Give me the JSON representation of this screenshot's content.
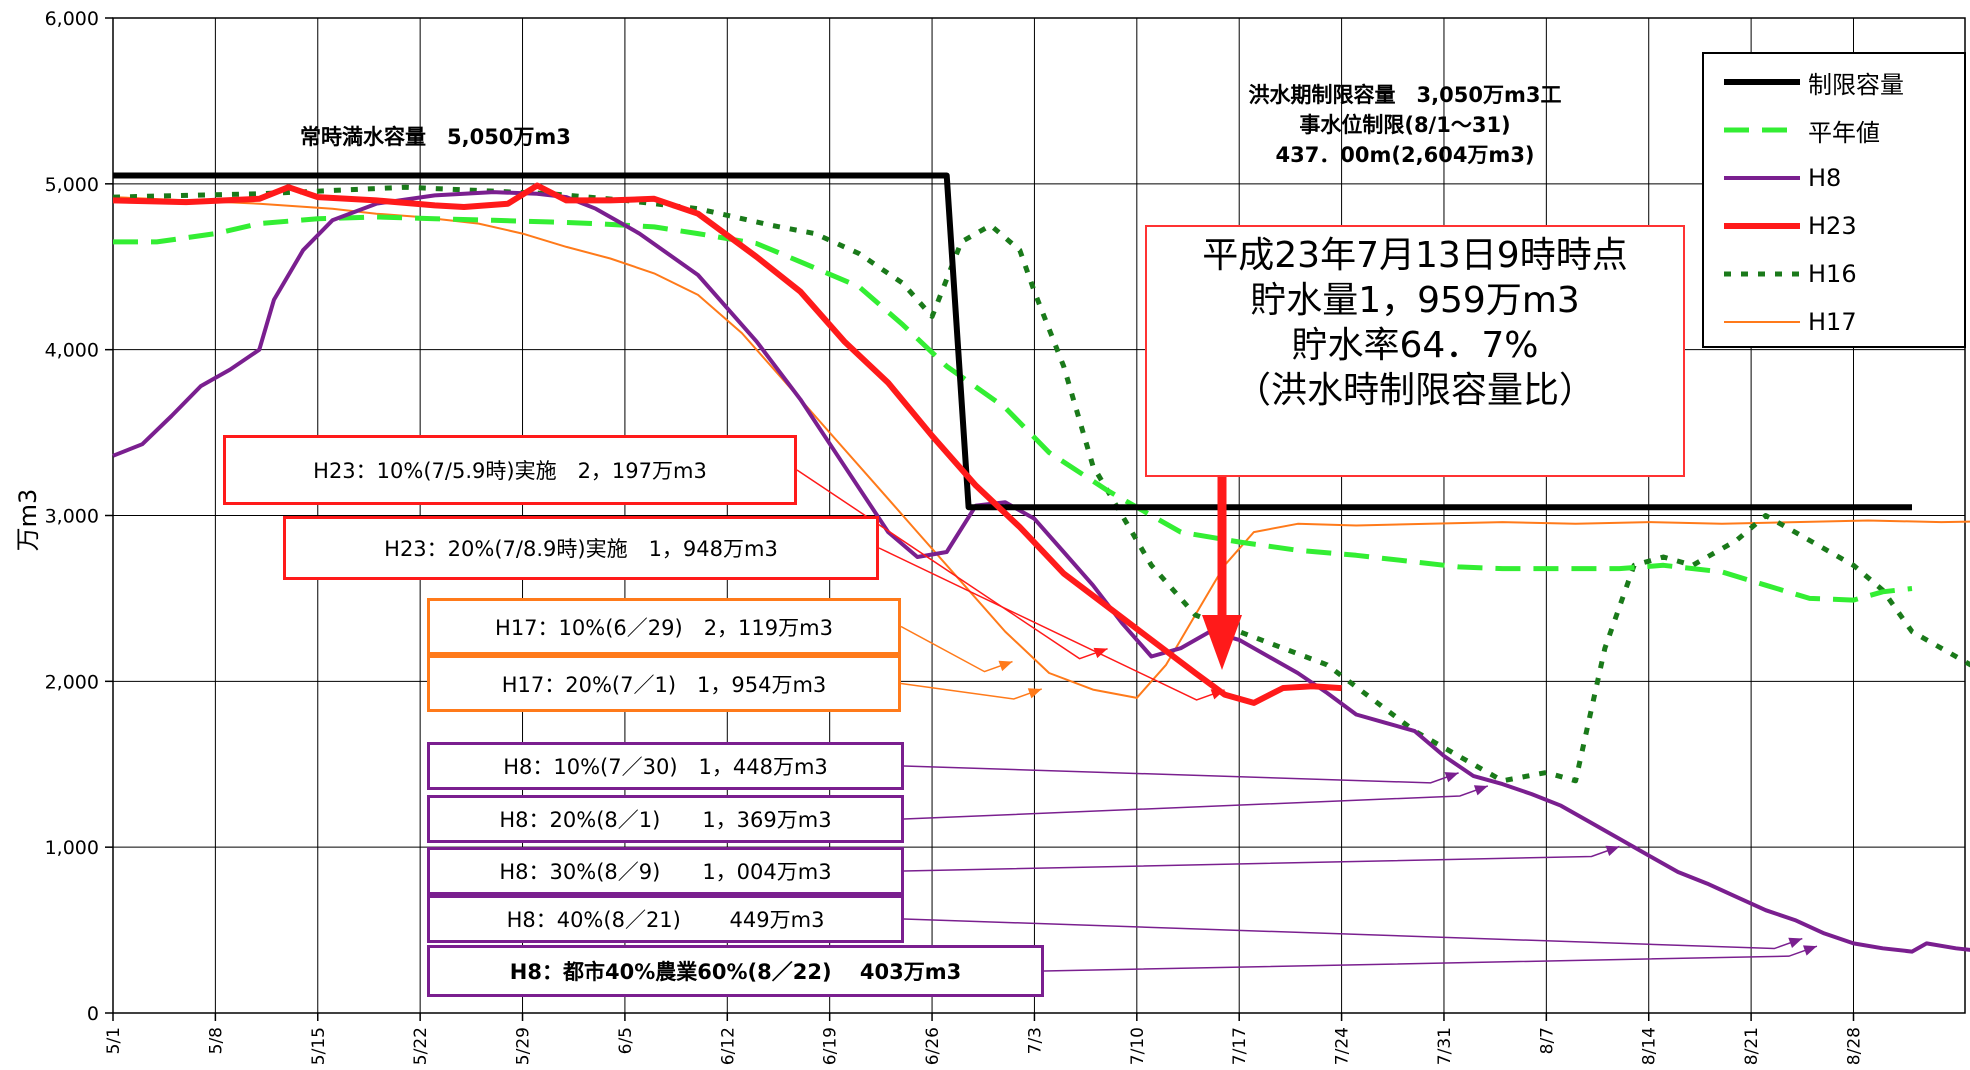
{
  "title_top_left": "",
  "title_top_right": "",
  "chart_data": {
    "type": "line",
    "ylabel": "万m3",
    "xlabel": "",
    "ylim": [
      0,
      6000
    ],
    "y_ticks": [
      "0",
      "1,000",
      "2,000",
      "3,000",
      "4,000",
      "5,000",
      "6,000"
    ],
    "x_ticks": [
      "5/1",
      "5/8",
      "5/15",
      "5/22",
      "5/29",
      "6/5",
      "6/12",
      "6/19",
      "6/26",
      "7/3",
      "7/10",
      "7/17",
      "7/24",
      "7/31",
      "8/7",
      "8/14",
      "8/21",
      "8/28"
    ],
    "x_domain_days": [
      0,
      123
    ],
    "series": [
      {
        "name": "制限容量",
        "color": "#000000",
        "style": "solid",
        "width": 6,
        "points": [
          [
            0,
            5050
          ],
          [
            57,
            5050
          ],
          [
            58.5,
            3050
          ],
          [
            123,
            3050
          ]
        ]
      },
      {
        "name": "平年値",
        "color": "#33ee33",
        "style": "dash",
        "width": 5,
        "points": [
          [
            0,
            4650
          ],
          [
            3,
            4650
          ],
          [
            7,
            4700
          ],
          [
            10,
            4760
          ],
          [
            14,
            4790
          ],
          [
            18,
            4800
          ],
          [
            22,
            4790
          ],
          [
            26,
            4780
          ],
          [
            30,
            4770
          ],
          [
            33,
            4760
          ],
          [
            37,
            4740
          ],
          [
            40,
            4700
          ],
          [
            44,
            4640
          ],
          [
            47,
            4530
          ],
          [
            51,
            4380
          ],
          [
            54,
            4150
          ],
          [
            57,
            3900
          ],
          [
            61,
            3650
          ],
          [
            64,
            3380
          ],
          [
            68,
            3150
          ],
          [
            71,
            3000
          ],
          [
            73,
            2900
          ],
          [
            77,
            2840
          ],
          [
            81,
            2790
          ],
          [
            85,
            2760
          ],
          [
            89,
            2720
          ],
          [
            92,
            2690
          ],
          [
            95,
            2680
          ],
          [
            99,
            2680
          ],
          [
            103,
            2680
          ],
          [
            106,
            2700
          ],
          [
            110,
            2660
          ],
          [
            113,
            2580
          ],
          [
            116,
            2500
          ],
          [
            119,
            2490
          ],
          [
            121,
            2540
          ],
          [
            123,
            2560
          ]
        ]
      },
      {
        "name": "H8",
        "color": "#7a1f8f",
        "style": "solid",
        "width": 4,
        "points": [
          [
            0,
            3360
          ],
          [
            2,
            3430
          ],
          [
            4,
            3600
          ],
          [
            6,
            3780
          ],
          [
            8,
            3880
          ],
          [
            10,
            4000
          ],
          [
            11,
            4300
          ],
          [
            13,
            4600
          ],
          [
            15,
            4780
          ],
          [
            18,
            4880
          ],
          [
            22,
            4930
          ],
          [
            26,
            4950
          ],
          [
            29,
            4940
          ],
          [
            31,
            4920
          ],
          [
            33,
            4850
          ],
          [
            36,
            4700
          ],
          [
            40,
            4450
          ],
          [
            44,
            4050
          ],
          [
            47,
            3700
          ],
          [
            50,
            3300
          ],
          [
            53,
            2900
          ],
          [
            55,
            2750
          ],
          [
            57,
            2780
          ],
          [
            59,
            3060
          ],
          [
            61,
            3080
          ],
          [
            63,
            2980
          ],
          [
            65,
            2780
          ],
          [
            67,
            2580
          ],
          [
            69,
            2350
          ],
          [
            71,
            2150
          ],
          [
            73,
            2200
          ],
          [
            75,
            2300
          ],
          [
            77,
            2250
          ],
          [
            79,
            2150
          ],
          [
            81,
            2050
          ],
          [
            83,
            1930
          ],
          [
            85,
            1800
          ],
          [
            87,
            1750
          ],
          [
            89,
            1700
          ],
          [
            91,
            1550
          ],
          [
            93,
            1430
          ],
          [
            95,
            1380
          ],
          [
            97,
            1320
          ],
          [
            99,
            1250
          ],
          [
            101,
            1150
          ],
          [
            103,
            1050
          ],
          [
            105,
            950
          ],
          [
            107,
            850
          ],
          [
            109,
            780
          ],
          [
            111,
            700
          ],
          [
            113,
            620
          ],
          [
            115,
            560
          ],
          [
            117,
            480
          ],
          [
            119,
            420
          ],
          [
            121,
            390
          ],
          [
            123,
            370
          ],
          [
            124,
            420
          ],
          [
            126,
            390
          ],
          [
            128,
            370
          ],
          [
            129,
            430
          ],
          [
            130,
            540
          ],
          [
            131,
            560
          ]
        ]
      },
      {
        "name": "H23",
        "color": "#ff1a1a",
        "style": "solid",
        "width": 6,
        "points": [
          [
            0,
            4900
          ],
          [
            5,
            4890
          ],
          [
            10,
            4910
          ],
          [
            12,
            4980
          ],
          [
            14,
            4920
          ],
          [
            18,
            4900
          ],
          [
            22,
            4870
          ],
          [
            24,
            4860
          ],
          [
            27,
            4880
          ],
          [
            29,
            4990
          ],
          [
            31,
            4900
          ],
          [
            34,
            4900
          ],
          [
            37,
            4910
          ],
          [
            40,
            4820
          ],
          [
            44,
            4560
          ],
          [
            47,
            4350
          ],
          [
            50,
            4050
          ],
          [
            53,
            3800
          ],
          [
            56,
            3480
          ],
          [
            59,
            3180
          ],
          [
            62,
            2930
          ],
          [
            65,
            2650
          ],
          [
            68,
            2450
          ],
          [
            71,
            2250
          ],
          [
            74,
            2050
          ],
          [
            76,
            1920
          ],
          [
            78,
            1870
          ],
          [
            80,
            1960
          ],
          [
            82,
            1970
          ],
          [
            84,
            1959
          ]
        ]
      },
      {
        "name": "H16",
        "color": "#1a7a1a",
        "style": "dot",
        "width": 5,
        "points": [
          [
            0,
            4920
          ],
          [
            5,
            4930
          ],
          [
            10,
            4940
          ],
          [
            15,
            4960
          ],
          [
            20,
            4980
          ],
          [
            25,
            4960
          ],
          [
            30,
            4940
          ],
          [
            35,
            4900
          ],
          [
            40,
            4850
          ],
          [
            45,
            4750
          ],
          [
            48,
            4700
          ],
          [
            51,
            4580
          ],
          [
            54,
            4400
          ],
          [
            56,
            4200
          ],
          [
            58,
            4650
          ],
          [
            60,
            4750
          ],
          [
            62,
            4600
          ],
          [
            63,
            4350
          ],
          [
            65,
            3900
          ],
          [
            67,
            3300
          ],
          [
            69,
            3000
          ],
          [
            71,
            2700
          ],
          [
            74,
            2400
          ],
          [
            77,
            2300
          ],
          [
            80,
            2200
          ],
          [
            83,
            2100
          ],
          [
            86,
            1900
          ],
          [
            89,
            1700
          ],
          [
            92,
            1550
          ],
          [
            95,
            1400
          ],
          [
            98,
            1450
          ],
          [
            100,
            1400
          ],
          [
            102,
            2200
          ],
          [
            104,
            2700
          ],
          [
            106,
            2750
          ],
          [
            108,
            2700
          ],
          [
            111,
            2850
          ],
          [
            113,
            3000
          ],
          [
            115,
            2900
          ],
          [
            117,
            2800
          ],
          [
            119,
            2700
          ],
          [
            121,
            2550
          ],
          [
            123,
            2300
          ],
          [
            125,
            2200
          ],
          [
            127,
            2100
          ],
          [
            129,
            2050
          ],
          [
            131,
            2200
          ]
        ]
      },
      {
        "name": "H17",
        "color": "#ff7a1a",
        "style": "solid",
        "width": 2,
        "points": [
          [
            0,
            4920
          ],
          [
            5,
            4900
          ],
          [
            10,
            4880
          ],
          [
            15,
            4850
          ],
          [
            18,
            4820
          ],
          [
            21,
            4800
          ],
          [
            25,
            4760
          ],
          [
            28,
            4700
          ],
          [
            31,
            4620
          ],
          [
            34,
            4550
          ],
          [
            37,
            4460
          ],
          [
            40,
            4330
          ],
          [
            43,
            4100
          ],
          [
            46,
            3800
          ],
          [
            49,
            3500
          ],
          [
            52,
            3200
          ],
          [
            55,
            2900
          ],
          [
            58,
            2600
          ],
          [
            61,
            2300
          ],
          [
            64,
            2050
          ],
          [
            67,
            1950
          ],
          [
            70,
            1900
          ],
          [
            72,
            2100
          ],
          [
            74,
            2400
          ],
          [
            76,
            2700
          ],
          [
            78,
            2900
          ],
          [
            81,
            2950
          ],
          [
            85,
            2940
          ],
          [
            90,
            2950
          ],
          [
            95,
            2960
          ],
          [
            100,
            2950
          ],
          [
            105,
            2960
          ],
          [
            110,
            2950
          ],
          [
            115,
            2960
          ],
          [
            120,
            2970
          ],
          [
            125,
            2960
          ],
          [
            131,
            2970
          ]
        ]
      }
    ],
    "legend": {
      "placement": "top-right",
      "entries": [
        "制限容量",
        "平年値",
        "H8",
        "H23",
        "H16",
        "H17"
      ]
    }
  },
  "annotations": {
    "full_capacity": "常時満水容量　5,050万m3",
    "flood_limit_line1": "洪水期制限容量　3,050万m3工",
    "flood_limit_line2": "事水位制限(8/1～31)",
    "flood_limit_line3": "437．00m(2,604万m3)",
    "current_line1": "平成23年7月13日9時時点",
    "current_line2": "貯水量1，959万m3",
    "current_line3": "貯水率64．7%",
    "current_line4": "（洪水時制限容量比）",
    "boxes": [
      {
        "text": "H23：10%(7/5.9時)実施　2，197万m3",
        "color": "#ff1a1a",
        "bold": false,
        "target": [
          68,
          2197
        ]
      },
      {
        "text": "H23：20%(7/8.9時)実施　1，948万m3",
        "color": "#ff1a1a",
        "bold": false,
        "target": [
          76,
          1948
        ]
      },
      {
        "text": "H17：10%(6／29)　2，119万m3",
        "color": "#ff7a1a",
        "bold": false,
        "target": [
          61.5,
          2119
        ]
      },
      {
        "text": "H17：20%(7／1)　1，954万m3",
        "color": "#ff7a1a",
        "bold": false,
        "target": [
          63.5,
          1954
        ]
      },
      {
        "text": "H8：10%(7／30)　1，448万m3",
        "color": "#7a1f8f",
        "bold": false,
        "target": [
          92,
          1448
        ]
      },
      {
        "text": "H8：20%(8／1)　　1，369万m3",
        "color": "#7a1f8f",
        "bold": false,
        "target": [
          94,
          1369
        ]
      },
      {
        "text": "H8：30%(8／9)　　1，004万m3",
        "color": "#7a1f8f",
        "bold": false,
        "target": [
          103,
          1004
        ]
      },
      {
        "text": "H8：40%(8／21)　　 449万m3",
        "color": "#7a1f8f",
        "bold": false,
        "target": [
          115.5,
          449
        ]
      },
      {
        "text": "H8：都市40%農業60%(8／22)　 403万m3",
        "color": "#7a1f8f",
        "bold": true,
        "target": [
          116.5,
          403
        ]
      }
    ]
  }
}
